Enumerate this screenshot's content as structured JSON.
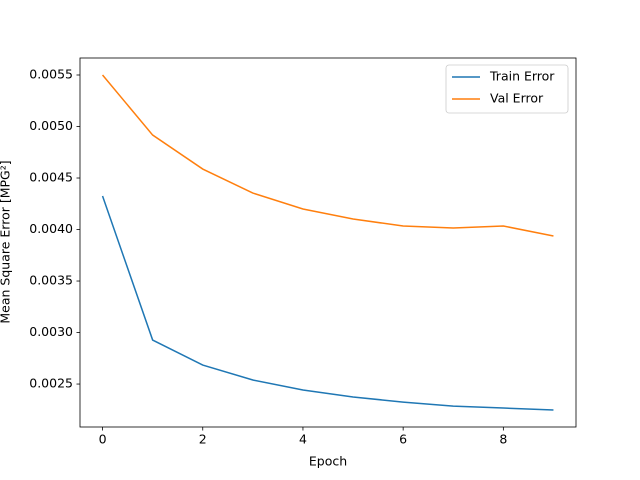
{
  "chart_data": {
    "type": "line",
    "x": [
      0,
      1,
      2,
      3,
      4,
      5,
      6,
      7,
      8,
      9
    ],
    "series": [
      {
        "name": "Train Error",
        "color": "#1f77b4",
        "values": [
          0.004325,
          0.002927,
          0.002684,
          0.002539,
          0.002442,
          0.002374,
          0.002325,
          0.002286,
          0.002267,
          0.002248
        ]
      },
      {
        "name": "Val Error",
        "color": "#ff7f0e",
        "values": [
          0.0055,
          0.004917,
          0.004587,
          0.004354,
          0.004199,
          0.004102,
          0.004034,
          0.004015,
          0.004034,
          0.003937
        ]
      }
    ],
    "x_label": "Epoch",
    "y_label": "Mean Square Error [MPG²]",
    "xlim": [
      -0.45,
      9.45
    ],
    "ylim": [
      0.002083,
      0.005665
    ],
    "xticks": [
      0,
      2,
      4,
      6,
      8
    ],
    "yticks": [
      0.0025,
      {
        "value": 0.003,
        "label": "0.0030"
      },
      0.0035,
      {
        "value": 0.004,
        "label": "0.0040"
      },
      0.0045,
      {
        "value": 0.005,
        "label": "0.0050"
      },
      0.0055
    ],
    "legend": "upper right"
  }
}
